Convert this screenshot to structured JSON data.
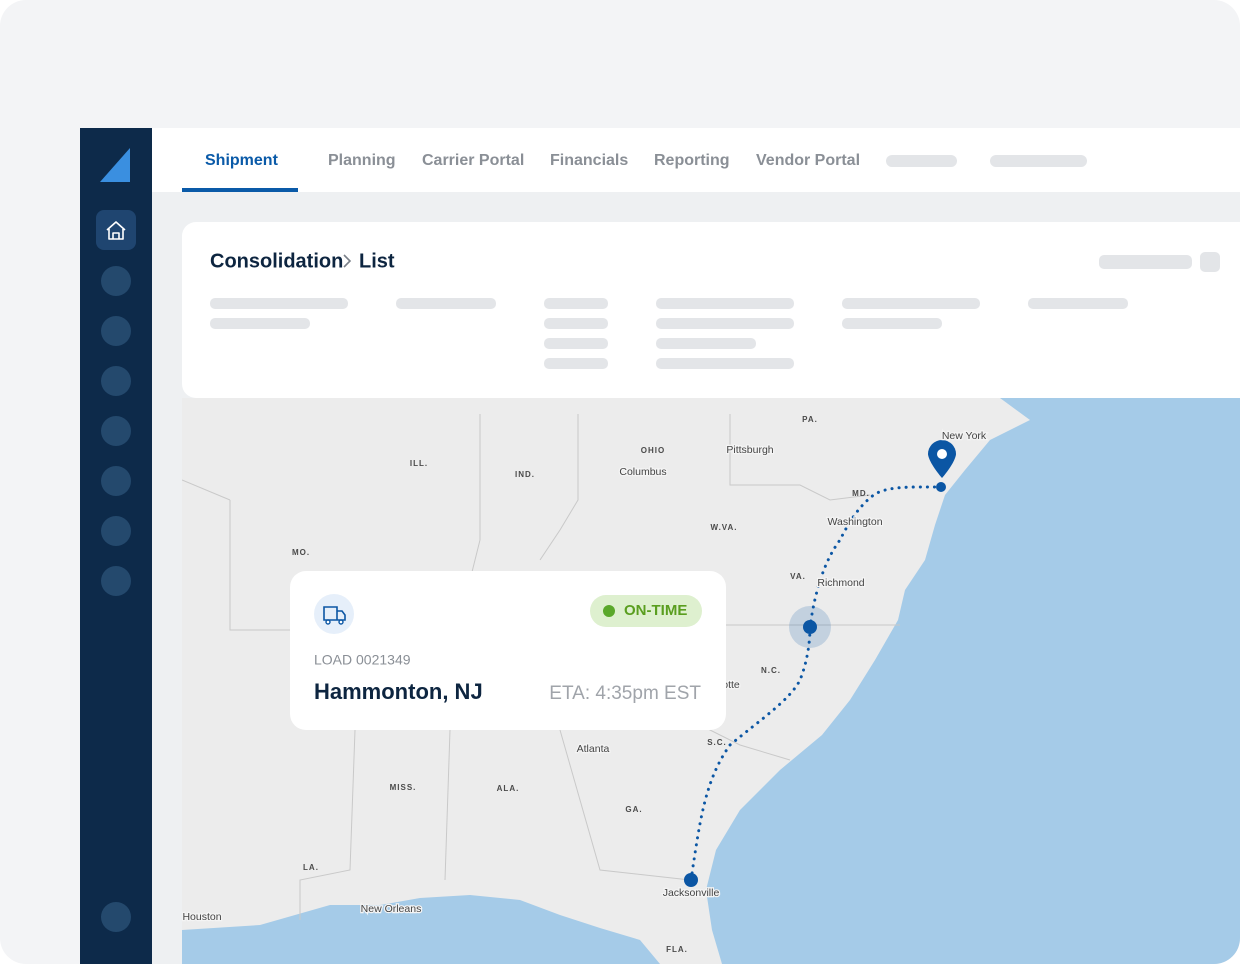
{
  "nav": {
    "tabs": [
      "Shipment",
      "Planning",
      "Carrier Portal",
      "Financials",
      "Reporting",
      "Vendor Portal"
    ],
    "active": 0
  },
  "breadcrumb": [
    "Consolidation",
    "List"
  ],
  "load_card": {
    "status": "ON-TIME",
    "load_id": "LOAD 0021349",
    "destination": "Hammonton, NJ",
    "eta": "ETA: 4:35pm EST"
  },
  "map": {
    "state_labels": [
      "PA.",
      "OHIO",
      "ILL.",
      "IND.",
      "W.VA.",
      "MO.",
      "VA.",
      "N.C.",
      "S.C.",
      "MISS.",
      "ALA.",
      "GA.",
      "LA.",
      "FLA.",
      "MD."
    ],
    "city_labels": [
      "New York",
      "Pittsburgh",
      "Columbus",
      "Washington",
      "Richmond",
      "Atlanta",
      "Jacksonville",
      "New Orleans",
      "Houston",
      "otte"
    ]
  }
}
